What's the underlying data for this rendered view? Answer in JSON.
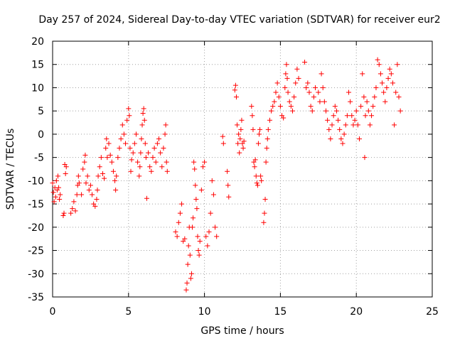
{
  "chart_data": {
    "type": "scatter",
    "title": "Day 257 of 2024, Sidereal Day-to-day VTEC variation (SDTVAR) for receiver eur2",
    "xlabel": "GPS time / hours",
    "ylabel": "SDTVAR / TECUs",
    "xlim": [
      0,
      25
    ],
    "ylim": [
      -35,
      20
    ],
    "xticks": [
      0,
      5,
      10,
      15,
      20,
      25
    ],
    "yticks": [
      -35,
      -30,
      -25,
      -20,
      -15,
      -10,
      -5,
      0,
      5,
      10,
      15,
      20
    ],
    "grid": true,
    "marker": "plus",
    "colors": {
      "series": "#ff0000",
      "grid": "#a0a0a0",
      "axis": "#000000"
    },
    "series": [
      {
        "name": "SDTVAR",
        "points": [
          [
            0.0,
            -10.5
          ],
          [
            0.05,
            -12.5
          ],
          [
            0.1,
            -14.5
          ],
          [
            0.15,
            -11.5
          ],
          [
            0.2,
            -13.5
          ],
          [
            0.25,
            -10
          ],
          [
            0.3,
            -12
          ],
          [
            0.35,
            -9
          ],
          [
            0.4,
            -11.5
          ],
          [
            0.45,
            -14
          ],
          [
            0.5,
            -13
          ],
          [
            0.7,
            -17.5
          ],
          [
            0.75,
            -17
          ],
          [
            0.8,
            -6.5
          ],
          [
            0.85,
            -8.5
          ],
          [
            0.9,
            -7
          ],
          [
            1.2,
            -17
          ],
          [
            1.3,
            -16
          ],
          [
            1.4,
            -14.5
          ],
          [
            1.5,
            -16.5
          ],
          [
            1.6,
            -13
          ],
          [
            1.65,
            -11
          ],
          [
            1.7,
            -9
          ],
          [
            1.75,
            -10.5
          ],
          [
            1.9,
            -13
          ],
          [
            2.0,
            -7.5
          ],
          [
            2.1,
            -6
          ],
          [
            2.15,
            -4.5
          ],
          [
            2.2,
            -10.5
          ],
          [
            2.3,
            -9
          ],
          [
            2.4,
            -12
          ],
          [
            2.5,
            -11
          ],
          [
            2.6,
            -13
          ],
          [
            2.7,
            -15
          ],
          [
            2.8,
            -15.5
          ],
          [
            2.9,
            -14
          ],
          [
            2.95,
            -12
          ],
          [
            3.0,
            -9
          ],
          [
            3.1,
            -7
          ],
          [
            3.2,
            -5
          ],
          [
            3.3,
            -8.5
          ],
          [
            3.4,
            -9.5
          ],
          [
            3.5,
            -3
          ],
          [
            3.55,
            -1
          ],
          [
            3.6,
            -5
          ],
          [
            3.7,
            -2
          ],
          [
            3.8,
            -4.5
          ],
          [
            3.9,
            -6
          ],
          [
            4.0,
            -8
          ],
          [
            4.1,
            -10
          ],
          [
            4.15,
            -12
          ],
          [
            4.2,
            -9
          ],
          [
            4.3,
            -5
          ],
          [
            4.4,
            -3
          ],
          [
            4.5,
            -1
          ],
          [
            4.6,
            2
          ],
          [
            4.7,
            0
          ],
          [
            4.8,
            -2
          ],
          [
            4.9,
            3
          ],
          [
            5.0,
            5.5
          ],
          [
            5.05,
            4
          ],
          [
            5.1,
            -3
          ],
          [
            5.15,
            -8
          ],
          [
            5.2,
            -5.5
          ],
          [
            5.3,
            -4
          ],
          [
            5.4,
            -2
          ],
          [
            5.5,
            0
          ],
          [
            5.6,
            -6
          ],
          [
            5.7,
            -9
          ],
          [
            5.75,
            -7
          ],
          [
            5.8,
            -4
          ],
          [
            5.85,
            -1
          ],
          [
            5.9,
            2
          ],
          [
            5.95,
            4.5
          ],
          [
            6.0,
            5.5
          ],
          [
            6.05,
            3
          ],
          [
            6.1,
            -2
          ],
          [
            6.15,
            -5
          ],
          [
            6.2,
            -13.8
          ],
          [
            6.3,
            -4
          ],
          [
            6.4,
            -7
          ],
          [
            6.5,
            -8
          ],
          [
            6.6,
            -5
          ],
          [
            6.7,
            -3
          ],
          [
            6.8,
            -6
          ],
          [
            6.9,
            -2
          ],
          [
            7.0,
            -1
          ],
          [
            7.1,
            -4
          ],
          [
            7.2,
            -7
          ],
          [
            7.3,
            -3
          ],
          [
            7.4,
            0
          ],
          [
            7.45,
            2
          ],
          [
            7.5,
            -6
          ],
          [
            7.55,
            -8
          ],
          [
            8.1,
            -21
          ],
          [
            8.2,
            -22
          ],
          [
            8.3,
            -19
          ],
          [
            8.4,
            -17
          ],
          [
            8.5,
            -15
          ],
          [
            8.6,
            -23
          ],
          [
            8.7,
            -22.5
          ],
          [
            8.8,
            -33.5
          ],
          [
            8.85,
            -32
          ],
          [
            8.9,
            -28
          ],
          [
            8.95,
            -24
          ],
          [
            9.0,
            -20
          ],
          [
            9.05,
            -26
          ],
          [
            9.1,
            -31
          ],
          [
            9.15,
            -30
          ],
          [
            9.2,
            -20
          ],
          [
            9.25,
            -18
          ],
          [
            9.3,
            -6
          ],
          [
            9.35,
            -7.5
          ],
          [
            9.4,
            -11
          ],
          [
            9.45,
            -14
          ],
          [
            9.5,
            -16
          ],
          [
            9.55,
            -22
          ],
          [
            9.6,
            -25
          ],
          [
            9.65,
            -26
          ],
          [
            9.7,
            -23
          ],
          [
            9.8,
            -12
          ],
          [
            9.9,
            -7
          ],
          [
            10.0,
            -6
          ],
          [
            10.1,
            -22
          ],
          [
            10.2,
            -24
          ],
          [
            10.3,
            -21
          ],
          [
            10.4,
            -17
          ],
          [
            10.5,
            -10
          ],
          [
            10.6,
            -13
          ],
          [
            10.7,
            -20
          ],
          [
            10.8,
            -22
          ],
          [
            11.2,
            -0.5
          ],
          [
            11.25,
            -2
          ],
          [
            11.5,
            -8
          ],
          [
            11.55,
            -11
          ],
          [
            11.6,
            -13.5
          ],
          [
            12.0,
            9.5
          ],
          [
            12.05,
            10.5
          ],
          [
            12.1,
            8
          ],
          [
            12.15,
            2
          ],
          [
            12.2,
            -2
          ],
          [
            12.25,
            0
          ],
          [
            12.3,
            -4
          ],
          [
            12.35,
            -1
          ],
          [
            12.4,
            1
          ],
          [
            12.45,
            3
          ],
          [
            12.5,
            -2
          ],
          [
            12.55,
            -3
          ],
          [
            12.6,
            -1.5
          ],
          [
            13.1,
            6
          ],
          [
            13.15,
            4
          ],
          [
            13.2,
            1
          ],
          [
            13.25,
            -6
          ],
          [
            13.3,
            -7
          ],
          [
            13.35,
            -5.5
          ],
          [
            13.4,
            -9
          ],
          [
            13.45,
            -10.5
          ],
          [
            13.5,
            -11
          ],
          [
            13.55,
            -2
          ],
          [
            13.6,
            0
          ],
          [
            13.65,
            1
          ],
          [
            13.7,
            -9
          ],
          [
            13.75,
            -10
          ],
          [
            13.9,
            -19
          ],
          [
            13.95,
            -17
          ],
          [
            14.0,
            -14
          ],
          [
            14.05,
            -6
          ],
          [
            14.1,
            -3
          ],
          [
            14.15,
            -1
          ],
          [
            14.2,
            1
          ],
          [
            14.3,
            3
          ],
          [
            14.4,
            5
          ],
          [
            14.5,
            6
          ],
          [
            14.6,
            7
          ],
          [
            14.7,
            9
          ],
          [
            14.8,
            11
          ],
          [
            14.9,
            8
          ],
          [
            15.0,
            6
          ],
          [
            15.1,
            4
          ],
          [
            15.2,
            3.5
          ],
          [
            15.3,
            10
          ],
          [
            15.35,
            13
          ],
          [
            15.4,
            15
          ],
          [
            15.45,
            12
          ],
          [
            15.5,
            9
          ],
          [
            15.6,
            7
          ],
          [
            15.7,
            6
          ],
          [
            15.8,
            5
          ],
          [
            15.9,
            8
          ],
          [
            16.0,
            11
          ],
          [
            16.1,
            14
          ],
          [
            16.2,
            12
          ],
          [
            16.6,
            15.5
          ],
          [
            16.7,
            10
          ],
          [
            16.8,
            11
          ],
          [
            16.9,
            9
          ],
          [
            17.0,
            6
          ],
          [
            17.1,
            5
          ],
          [
            17.2,
            8
          ],
          [
            17.3,
            10
          ],
          [
            17.5,
            9
          ],
          [
            17.6,
            7
          ],
          [
            17.7,
            13
          ],
          [
            17.8,
            10
          ],
          [
            17.9,
            7
          ],
          [
            18.0,
            5
          ],
          [
            18.1,
            3
          ],
          [
            18.2,
            1
          ],
          [
            18.3,
            -1
          ],
          [
            18.4,
            2
          ],
          [
            18.5,
            4
          ],
          [
            18.6,
            6
          ],
          [
            18.7,
            5
          ],
          [
            18.8,
            3
          ],
          [
            18.9,
            1
          ],
          [
            19.0,
            -1
          ],
          [
            19.1,
            -2
          ],
          [
            19.2,
            0
          ],
          [
            19.3,
            2
          ],
          [
            19.4,
            4
          ],
          [
            19.5,
            9
          ],
          [
            19.6,
            7
          ],
          [
            19.7,
            4
          ],
          [
            19.8,
            2
          ],
          [
            19.9,
            3
          ],
          [
            20.0,
            5
          ],
          [
            20.1,
            2
          ],
          [
            20.2,
            -1
          ],
          [
            20.3,
            6
          ],
          [
            20.4,
            13
          ],
          [
            20.5,
            8
          ],
          [
            20.55,
            -5
          ],
          [
            20.6,
            4
          ],
          [
            20.7,
            7
          ],
          [
            20.8,
            5
          ],
          [
            20.9,
            2
          ],
          [
            21.0,
            4
          ],
          [
            21.1,
            6
          ],
          [
            21.2,
            8
          ],
          [
            21.3,
            10
          ],
          [
            21.4,
            16
          ],
          [
            21.5,
            15
          ],
          [
            21.6,
            13
          ],
          [
            21.7,
            11
          ],
          [
            21.8,
            9
          ],
          [
            21.9,
            7
          ],
          [
            22.0,
            10
          ],
          [
            22.1,
            12
          ],
          [
            22.2,
            14
          ],
          [
            22.3,
            13
          ],
          [
            22.4,
            11
          ],
          [
            22.5,
            2
          ],
          [
            22.6,
            9
          ],
          [
            22.7,
            15
          ],
          [
            22.8,
            8
          ],
          [
            22.9,
            5
          ]
        ]
      }
    ]
  }
}
